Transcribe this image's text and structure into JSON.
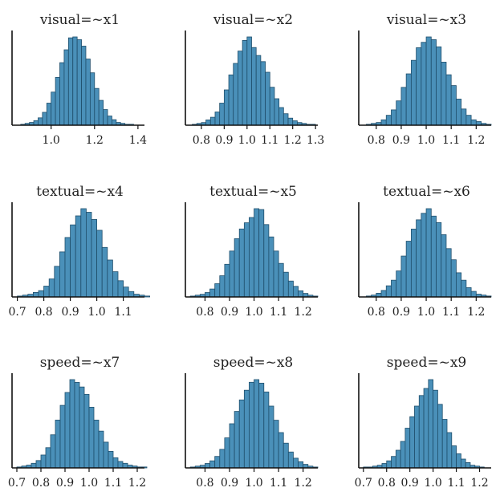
{
  "chart_data": [
    {
      "type": "bar",
      "title": "visual=~x1",
      "xticks": [
        1.0,
        1.2,
        1.4
      ],
      "tick_labels": [
        "1.0",
        "1.2",
        "1.4"
      ],
      "xlim": [
        0.82,
        1.43
      ],
      "bin_width": 0.02,
      "bins_start": 0.86,
      "values": [
        1,
        2,
        3,
        5,
        8,
        14,
        24,
        36,
        52,
        68,
        82,
        95,
        96,
        93,
        86,
        72,
        57,
        40,
        27,
        17,
        10,
        6,
        3,
        2,
        1,
        1
      ]
    },
    {
      "type": "bar",
      "title": "visual=~x2",
      "xticks": [
        0.8,
        0.9,
        1.0,
        1.1,
        1.2,
        1.3
      ],
      "tick_labels": [
        "0.8",
        "0.9",
        "1.0",
        "1.1",
        "1.2",
        "1.3"
      ],
      "xlim": [
        0.73,
        1.31
      ],
      "bin_width": 0.02,
      "bins_start": 0.76,
      "values": [
        1,
        2,
        3,
        6,
        9,
        15,
        25,
        40,
        57,
        70,
        84,
        96,
        100,
        88,
        79,
        72,
        60,
        43,
        30,
        20,
        13,
        8,
        5,
        3,
        2,
        1,
        1
      ]
    },
    {
      "type": "bar",
      "title": "visual=~x3",
      "xticks": [
        0.8,
        0.9,
        1.0,
        1.1,
        1.2
      ],
      "tick_labels": [
        "0.8",
        "0.9",
        "1.0",
        "1.1",
        "1.2"
      ],
      "xlim": [
        0.73,
        1.26
      ],
      "bin_width": 0.02,
      "bins_start": 0.76,
      "values": [
        1,
        2,
        3,
        6,
        11,
        17,
        27,
        42,
        57,
        72,
        86,
        92,
        98,
        95,
        87,
        70,
        56,
        44,
        29,
        18,
        11,
        6,
        4,
        2,
        1
      ]
    },
    {
      "type": "bar",
      "title": "textual=~x4",
      "xticks": [
        0.7,
        0.8,
        0.9,
        1.0,
        1.1
      ],
      "tick_labels": [
        "0.7",
        "0.8",
        "0.9",
        "1.0",
        "1.1"
      ],
      "xlim": [
        0.68,
        1.18
      ],
      "bin_width": 0.02,
      "bins_start": 0.7,
      "values": [
        1,
        2,
        3,
        5,
        7,
        12,
        20,
        34,
        50,
        66,
        80,
        90,
        98,
        94,
        86,
        74,
        55,
        41,
        28,
        18,
        11,
        6,
        3,
        2,
        1
      ]
    },
    {
      "type": "bar",
      "title": "textual=~x5",
      "xticks": [
        0.8,
        0.9,
        1.0,
        1.1,
        1.2
      ],
      "tick_labels": [
        "0.8",
        "0.9",
        "1.0",
        "1.1",
        "1.2"
      ],
      "xlim": [
        0.72,
        1.26
      ],
      "bin_width": 0.02,
      "bins_start": 0.74,
      "values": [
        1,
        2,
        3,
        5,
        9,
        15,
        24,
        37,
        52,
        66,
        77,
        84,
        90,
        100,
        99,
        82,
        68,
        52,
        38,
        28,
        18,
        12,
        7,
        4,
        2,
        1
      ]
    },
    {
      "type": "bar",
      "title": "textual=~x6",
      "xticks": [
        0.8,
        0.9,
        1.0,
        1.1,
        1.2
      ],
      "tick_labels": [
        "0.8",
        "0.9",
        "1.0",
        "1.1",
        "1.2"
      ],
      "xlim": [
        0.73,
        1.26
      ],
      "bin_width": 0.02,
      "bins_start": 0.76,
      "values": [
        1,
        2,
        4,
        7,
        12,
        18,
        28,
        44,
        60,
        73,
        83,
        90,
        95,
        87,
        80,
        67,
        52,
        40,
        26,
        18,
        10,
        6,
        3,
        2,
        1
      ]
    },
    {
      "type": "bar",
      "title": "speed=~x7",
      "xticks": [
        0.7,
        0.8,
        0.9,
        1.0,
        1.1,
        1.2
      ],
      "tick_labels": [
        "0.7",
        "0.8",
        "0.9",
        "1.0",
        "1.1",
        "1.2"
      ],
      "xlim": [
        0.68,
        1.23
      ],
      "bin_width": 0.02,
      "bins_start": 0.7,
      "values": [
        1,
        2,
        3,
        5,
        8,
        14,
        22,
        36,
        52,
        68,
        82,
        96,
        93,
        88,
        80,
        66,
        52,
        40,
        28,
        18,
        11,
        7,
        5,
        3,
        2,
        1,
        1
      ]
    },
    {
      "type": "bar",
      "title": "speed=~x8",
      "xticks": [
        0.8,
        0.9,
        1.0,
        1.1,
        1.2
      ],
      "tick_labels": [
        "0.8",
        "0.9",
        "1.0",
        "1.1",
        "1.2"
      ],
      "xlim": [
        0.72,
        1.26
      ],
      "bin_width": 0.02,
      "bins_start": 0.74,
      "values": [
        1,
        2,
        3,
        5,
        8,
        13,
        21,
        34,
        50,
        64,
        77,
        88,
        97,
        100,
        96,
        86,
        70,
        54,
        40,
        28,
        18,
        11,
        7,
        4,
        2,
        1
      ]
    },
    {
      "type": "bar",
      "title": "speed=~x9",
      "xticks": [
        0.7,
        0.8,
        0.9,
        1.0,
        1.1,
        1.2
      ],
      "tick_labels": [
        "0.7",
        "0.8",
        "0.9",
        "1.0",
        "1.1",
        "1.2"
      ],
      "xlim": [
        0.68,
        1.25
      ],
      "bin_width": 0.02,
      "bins_start": 0.7,
      "values": [
        1,
        1,
        2,
        3,
        5,
        8,
        13,
        20,
        30,
        45,
        58,
        70,
        82,
        90,
        100,
        88,
        72,
        55,
        40,
        25,
        16,
        10,
        6,
        3,
        2,
        1
      ]
    }
  ],
  "colors": {
    "bar_fill": "#4a90b9",
    "bar_stroke": "#1f4e6b",
    "axis": "#111111",
    "text": "#222222"
  }
}
